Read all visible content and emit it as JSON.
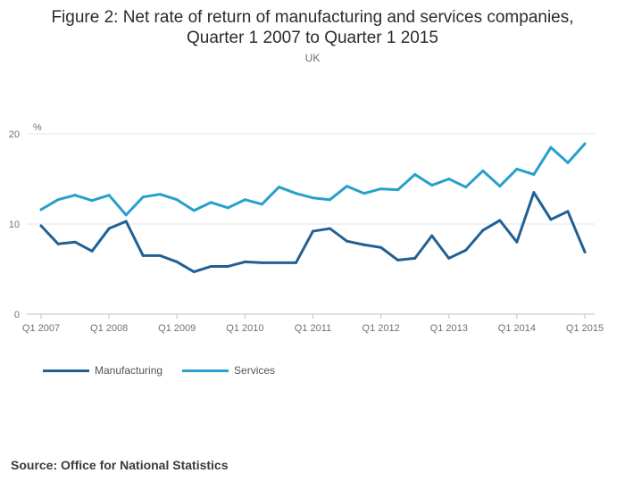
{
  "title": {
    "line1": "Figure 2: Net rate of return of manufacturing and services companies,",
    "line2": "Quarter 1 2007 to Quarter 1 2015"
  },
  "subtitle": "UK",
  "source": "Source: Office for National Statistics",
  "chart_data": {
    "type": "line",
    "title": "Figure 2: Net rate of return of manufacturing and services companies, Quarter 1 2007 to Quarter 1 2015",
    "subtitle": "UK",
    "ylabel": "%",
    "xlabel": "",
    "ylim": [
      0,
      20
    ],
    "yticks": [
      0,
      10,
      20
    ],
    "grid": true,
    "legend_position": "bottom-left",
    "x": [
      "Q1 2007",
      "Q2 2007",
      "Q3 2007",
      "Q4 2007",
      "Q1 2008",
      "Q2 2008",
      "Q3 2008",
      "Q4 2008",
      "Q1 2009",
      "Q2 2009",
      "Q3 2009",
      "Q4 2009",
      "Q1 2010",
      "Q2 2010",
      "Q3 2010",
      "Q4 2010",
      "Q1 2011",
      "Q2 2011",
      "Q3 2011",
      "Q4 2011",
      "Q1 2012",
      "Q2 2012",
      "Q3 2012",
      "Q4 2012",
      "Q1 2013",
      "Q2 2013",
      "Q3 2013",
      "Q4 2013",
      "Q1 2014",
      "Q2 2014",
      "Q3 2014",
      "Q4 2014",
      "Q1 2015"
    ],
    "xtick_labels": [
      "Q1 2007",
      "Q1 2008",
      "Q1 2009",
      "Q1 2010",
      "Q1 2011",
      "Q1 2012",
      "Q1 2013",
      "Q1 2014",
      "Q1 2015"
    ],
    "series": [
      {
        "name": "Manufacturing",
        "color": "#206095",
        "values": [
          9.8,
          7.8,
          8.0,
          7.0,
          9.5,
          10.3,
          6.5,
          6.5,
          5.8,
          4.7,
          5.3,
          5.3,
          5.8,
          5.7,
          5.7,
          5.7,
          9.2,
          9.5,
          8.1,
          7.7,
          7.4,
          6.0,
          6.2,
          8.7,
          6.2,
          7.1,
          9.3,
          10.4,
          8.0,
          13.5,
          10.5,
          11.4,
          6.9
        ]
      },
      {
        "name": "Services",
        "color": "#27a0cc",
        "values": [
          11.6,
          12.7,
          13.2,
          12.6,
          13.2,
          11.0,
          13.0,
          13.3,
          12.7,
          11.5,
          12.4,
          11.8,
          12.7,
          12.2,
          14.1,
          13.4,
          12.9,
          12.7,
          14.2,
          13.4,
          13.9,
          13.8,
          15.5,
          14.3,
          15.0,
          14.1,
          15.9,
          14.2,
          16.1,
          15.5,
          18.5,
          16.8,
          18.9
        ]
      }
    ]
  }
}
